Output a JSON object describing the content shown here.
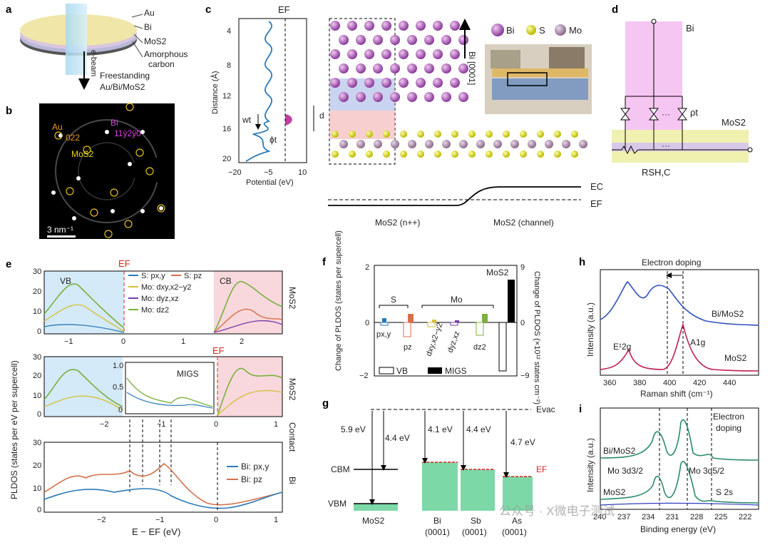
{
  "panels": {
    "a": {
      "label": "a",
      "layers": [
        "Au",
        "Bi",
        "MoS2",
        "Amorphous",
        "carbon",
        "Freestanding",
        "Au/Bi/MoS2"
      ],
      "beam": "e-beam"
    },
    "b": {
      "label": "b",
      "au_label": "Au",
      "au_index": "022",
      "bi_label": "Bi",
      "bi_index": "11ŷ2ŷ0",
      "mos2_label": "MoS2",
      "scale": "3 nm⁻¹"
    },
    "c": {
      "label": "c",
      "ef": "EF",
      "ylabel": "Distance (Å)",
      "xlabel": "Potential (eV)",
      "yticks": [
        "4",
        "8",
        "12",
        "16",
        "20"
      ],
      "xticks": [
        "−20",
        "−5",
        "10"
      ],
      "wt": "wt",
      "phit": "ϕt",
      "d": "d",
      "axis_label": "Bi [0001]",
      "legend": [
        "Bi",
        "S",
        "Mo"
      ],
      "band_ec": "EC",
      "band_ef": "EF",
      "region_left": "MoS2 (n++)",
      "region_right": "MoS2 (channel)"
    },
    "d": {
      "label": "d",
      "bi": "Bi",
      "mos2": "MoS2",
      "rho": "ρt",
      "rsh": "RSH,C",
      "dots": "···"
    },
    "e": {
      "label": "e",
      "ef": "EF",
      "vb": "VB",
      "cb": "CB",
      "migs": "MIGS",
      "ylabel": "PLDOS (states per eV per supercell)",
      "xlabel": "E − EF (eV)",
      "side_top": "MoS2",
      "side_mid": "MoS2",
      "side_contact": "Contact",
      "side_bi": "Bi",
      "legend_top": [
        "S: px,y",
        "S: pz",
        "Mo: dxy,x2−y2",
        "Mo: dyz,xz",
        "Mo: dz2"
      ],
      "legend_bottom": [
        "Bi: px,y",
        "Bi: pz"
      ],
      "top_xticks": [
        "−1",
        "0",
        "1",
        "2"
      ],
      "mid_xticks": [
        "−2",
        "−1",
        "0",
        "1"
      ],
      "bot_xticks": [
        "−2",
        "−1",
        "0",
        "1"
      ],
      "yticks": [
        "0",
        "10",
        "20",
        "30"
      ],
      "inset_yticks": [
        "0",
        "0.5",
        "1.0"
      ]
    },
    "f": {
      "label": "f",
      "ylabel_left": "Change of PLDOS (states per supercell)",
      "ylabel_right": "Change of PLDOS (×10¹² states cm⁻²)",
      "left_ticks": [
        "2",
        "0",
        "−2"
      ],
      "right_ticks": [
        "9",
        "0",
        "−9"
      ],
      "group_s": "S",
      "group_mo": "Mo",
      "mos2": "MoS2",
      "orbitals": [
        "px,y",
        "pz",
        "dxy,x2−y2",
        "dyz,xz",
        "dz2"
      ],
      "legend_vb": "VB",
      "legend_migs": "MIGS"
    },
    "g": {
      "label": "g",
      "evac": "Evac",
      "ef": "EF",
      "cbm": "CBM",
      "vbm": "VBM",
      "energies": [
        "5.9 eV",
        "4.4 eV",
        "4.1 eV",
        "4.4 eV",
        "4.7 eV"
      ],
      "materials": [
        "MoS2",
        "Bi",
        "Sb",
        "As"
      ],
      "facets": [
        "(0001)",
        "(0001)",
        "(0001)"
      ]
    },
    "h": {
      "label": "h",
      "title": "Electron doping",
      "ylabel": "Intensity (a.u.)",
      "xlabel": "Raman shift (cm⁻¹)",
      "xticks": [
        "360",
        "380",
        "400",
        "420",
        "440"
      ],
      "trace1": "Bi/MoS2",
      "trace2": "MoS2",
      "peak1": "E¹2g",
      "peak2": "A1g"
    },
    "i": {
      "label": "i",
      "ylabel": "Intensity (a.u.)",
      "xlabel": "Binding energy (eV)",
      "xticks": [
        "240",
        "237",
        "234",
        "231",
        "228",
        "225",
        "222"
      ],
      "annot": [
        "Electron",
        "doping"
      ],
      "trace1": "Bi/MoS2",
      "trace2": "MoS2",
      "peak1": "Mo 3d3/2",
      "peak2": "Mo 3d5/2",
      "peak3": "S 2s"
    }
  },
  "watermark": "公众号 · X微电子测试"
}
